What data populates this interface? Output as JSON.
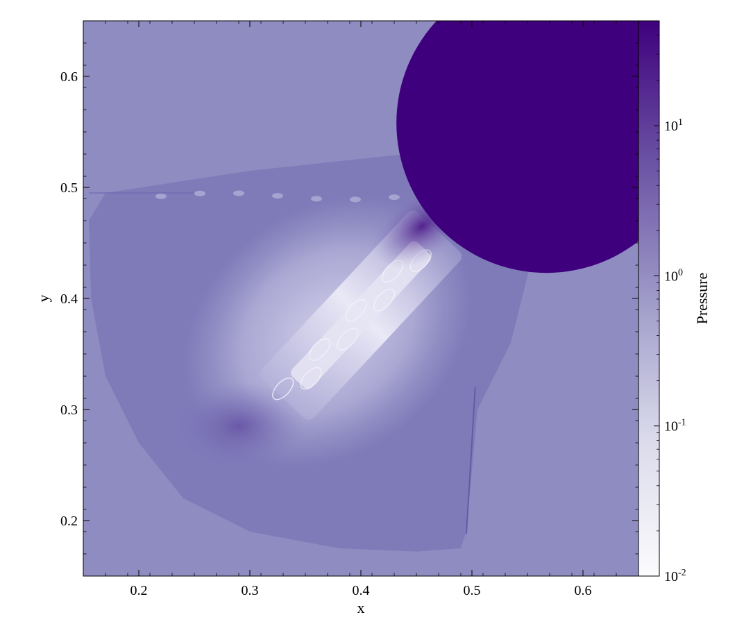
{
  "chart_data": {
    "type": "heatmap",
    "title": "",
    "xlabel": "x",
    "ylabel": "y",
    "xlim": [
      0.15,
      0.65
    ],
    "ylim": [
      0.15,
      0.65
    ],
    "x_ticks": [
      0.2,
      0.3,
      0.4,
      0.5,
      0.6
    ],
    "x_tick_labels": [
      "0.2",
      "0.3",
      "0.4",
      "0.5",
      "0.6"
    ],
    "y_ticks": [
      0.2,
      0.3,
      0.4,
      0.5,
      0.6
    ],
    "y_tick_labels": [
      "0.2",
      "0.3",
      "0.4",
      "0.5",
      "0.6"
    ],
    "colorbar": {
      "label": "Pressure",
      "scale": "log",
      "range": [
        0.01,
        50
      ],
      "ticks": [
        0.01,
        0.1,
        1,
        10
      ],
      "tick_labels": [
        {
          "base": "10",
          "exp": "-2"
        },
        {
          "base": "10",
          "exp": "-1"
        },
        {
          "base": "10",
          "exp": "0"
        },
        {
          "base": "10",
          "exp": "1"
        }
      ],
      "colormap": "Purples",
      "colors": {
        "low": "#fcfbfd",
        "mid": "#9e9ac8",
        "high": "#3f007d"
      }
    },
    "colors": {
      "ambient": "#8f8cc2",
      "shell": "#7f7bb9",
      "cavity": "#9f9dcd",
      "jet": "#c9c7e5",
      "jet_core": "#e6e5f3",
      "high_pressure_lobe": "#3f007d",
      "compressed_region": "#6a5aa6"
    },
    "features": {
      "high_pressure_lobe": {
        "center": [
          0.567,
          0.558
        ],
        "radius": 0.135,
        "pressure_level": 50
      },
      "jet_axis": {
        "start": [
          0.47,
          0.46
        ],
        "end": [
          0.33,
          0.31
        ]
      },
      "shock_edge_x": 0.495,
      "shell_outer_edge": [
        [
          0.17,
          0.495
        ],
        [
          0.155,
          0.47
        ],
        [
          0.157,
          0.4
        ],
        [
          0.17,
          0.33
        ],
        [
          0.2,
          0.27
        ],
        [
          0.24,
          0.22
        ],
        [
          0.3,
          0.19
        ],
        [
          0.38,
          0.175
        ],
        [
          0.45,
          0.172
        ],
        [
          0.49,
          0.175
        ],
        [
          0.495,
          0.19
        ]
      ]
    }
  }
}
